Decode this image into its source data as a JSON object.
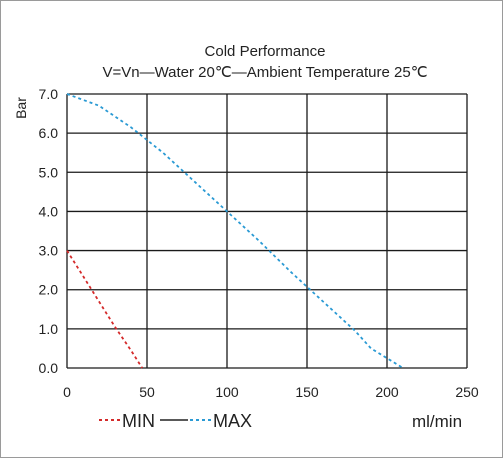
{
  "chart_data": {
    "type": "line",
    "title": "Cold Performance",
    "subtitle": "V=Vn—Water 20℃—Ambient Temperature 25℃",
    "xlabel": "ml/min",
    "ylabel": "Bar",
    "xlim": [
      0,
      250
    ],
    "ylim": [
      0,
      7
    ],
    "x_ticks": [
      "0",
      "50",
      "100",
      "150",
      "200",
      "250"
    ],
    "y_ticks": [
      "0.0",
      "1.0",
      "2.0",
      "3.0",
      "4.0",
      "5.0",
      "6.0",
      "7.0"
    ],
    "grid": true,
    "legend_position": "bottom-left",
    "series": [
      {
        "name": "MIN",
        "color": "#d42a2a",
        "line_style": "dotted",
        "points": [
          [
            0,
            3.0
          ],
          [
            10,
            2.35
          ],
          [
            20,
            1.7
          ],
          [
            30,
            1.05
          ],
          [
            40,
            0.45
          ],
          [
            47,
            0.0
          ]
        ]
      },
      {
        "name": "MAX",
        "color": "#2a9ad4",
        "line_style": "dotted",
        "points": [
          [
            0,
            7.0
          ],
          [
            20,
            6.7
          ],
          [
            40,
            6.15
          ],
          [
            60,
            5.5
          ],
          [
            80,
            4.75
          ],
          [
            100,
            4.0
          ],
          [
            120,
            3.25
          ],
          [
            140,
            2.45
          ],
          [
            160,
            1.7
          ],
          [
            180,
            0.95
          ],
          [
            190,
            0.5
          ],
          [
            200,
            0.25
          ],
          [
            210,
            0.0
          ]
        ]
      }
    ]
  },
  "legend": {
    "dash_symbol": "- - -",
    "solid_symbol": "——",
    "min_label": "MIN",
    "max_label": "MAX"
  }
}
